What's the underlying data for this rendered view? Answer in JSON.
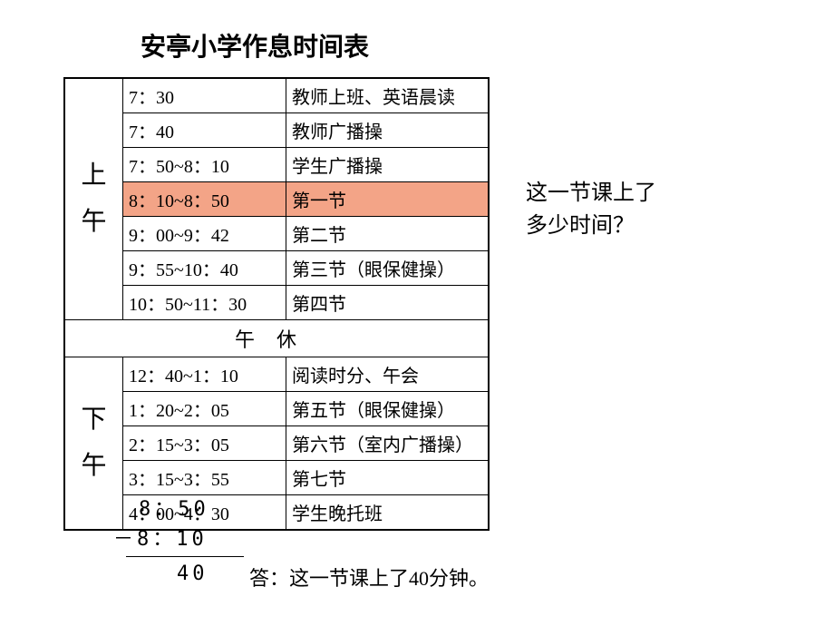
{
  "title": "安亭小学作息时间表",
  "morning": {
    "label_top": "上",
    "label_bottom": "午",
    "rows": [
      {
        "time": "7：30",
        "act": "教师上班、英语晨读",
        "hl": false
      },
      {
        "time": "7：40",
        "act": "教师广播操",
        "hl": false
      },
      {
        "time": "7：50~8：10",
        "act": "学生广播操",
        "hl": false
      },
      {
        "time": "8：10~8：50",
        "act": "第一节",
        "hl": true
      },
      {
        "time": "9：00~9：42",
        "act": "第二节",
        "hl": false
      },
      {
        "time": "9：55~10：40",
        "act": "第三节（眼保健操）",
        "hl": false
      },
      {
        "time": "10：50~11：30",
        "act": "第四节",
        "hl": false
      }
    ]
  },
  "break_label": "午休",
  "afternoon": {
    "label_top": "下",
    "label_bottom": "午",
    "rows": [
      {
        "time": "12：40~1：10",
        "act": "阅读时分、午会"
      },
      {
        "time": "1：20~2：05",
        "act": "第五节（眼保健操）"
      },
      {
        "time": "2：15~3：05",
        "act": "第六节（室内广播操）"
      },
      {
        "time": "3：15~3：55",
        "act": "第七节"
      },
      {
        "time": "4：00~4：30",
        "act": "学生晚托班"
      }
    ]
  },
  "question_line1": "这一节课上了",
  "question_line2": "多少时间？",
  "calc": {
    "top": "8：50",
    "minus": "－8：10",
    "result": "40"
  },
  "answer": "答：这一节课上了40分钟。",
  "colors": {
    "highlight": "#f3a487",
    "text": "#000000",
    "background": "#ffffff",
    "border": "#000000"
  },
  "typography": {
    "title_fontsize": 28,
    "table_fontsize": 20,
    "session_fontsize": 28,
    "question_fontsize": 24,
    "calc_fontsize": 22,
    "answer_fontsize": 22
  }
}
